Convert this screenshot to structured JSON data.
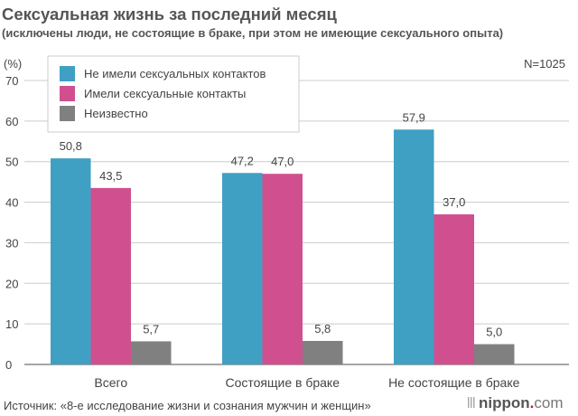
{
  "chart_data": {
    "type": "bar",
    "title": "Сексуальная жизнь за последний месяц",
    "subtitle": "(исключены люди, не состоящие в браке, при этом не имеющие сексуального опыта)",
    "ylabel": "(%)",
    "note": "N=1025",
    "categories": [
      "Всего",
      "Состоящие в браке",
      "Не состоящие в браке"
    ],
    "series": [
      {
        "name": "Не имели сексуальных контактов",
        "color": "#3fa0c4",
        "values": [
          50.8,
          47.2,
          57.9
        ],
        "labels": [
          "50,8",
          "47,2",
          "57,9"
        ]
      },
      {
        "name": "Имели сексуальные контакты",
        "color": "#d0508f",
        "values": [
          43.5,
          47.0,
          37.0
        ],
        "labels": [
          "43,5",
          "47,0",
          "37,0"
        ]
      },
      {
        "name": "Неизвестно",
        "color": "#808080",
        "values": [
          5.7,
          5.8,
          5.0
        ],
        "labels": [
          "5,7",
          "5,8",
          "5,0"
        ]
      }
    ],
    "ylim": [
      0,
      70
    ],
    "yticks": [
      0,
      10,
      20,
      30,
      40,
      50,
      60,
      70
    ],
    "grid": true,
    "legend": "top-left",
    "source": "Источник: «8-е исследование жизни и сознания мужчин и женщин»",
    "logo": "nippon.com"
  }
}
